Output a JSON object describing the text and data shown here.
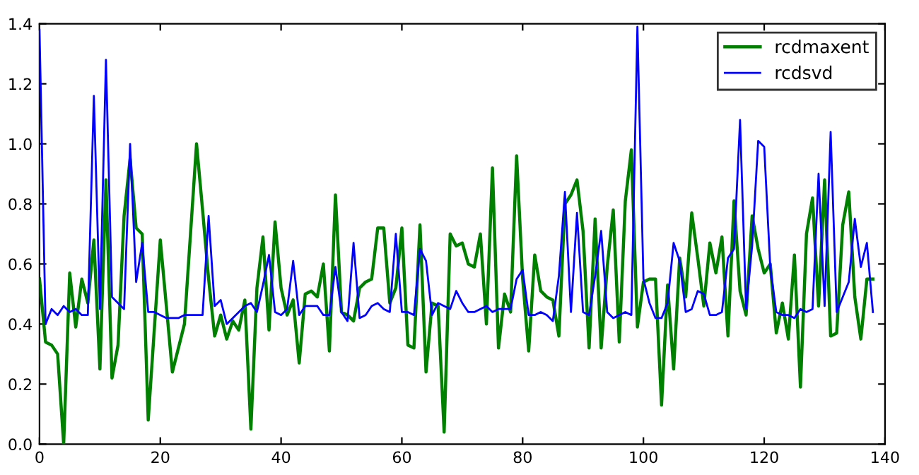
{
  "chart_data": {
    "type": "line",
    "x": [
      0,
      1,
      2,
      3,
      4,
      5,
      6,
      7,
      8,
      9,
      10,
      11,
      12,
      13,
      14,
      15,
      16,
      17,
      18,
      19,
      20,
      21,
      22,
      23,
      24,
      25,
      26,
      27,
      28,
      29,
      30,
      31,
      32,
      33,
      34,
      35,
      36,
      37,
      38,
      39,
      40,
      41,
      42,
      43,
      44,
      45,
      46,
      47,
      48,
      49,
      50,
      51,
      52,
      53,
      54,
      55,
      56,
      57,
      58,
      59,
      60,
      61,
      62,
      63,
      64,
      65,
      66,
      67,
      68,
      69,
      70,
      71,
      72,
      73,
      74,
      75,
      76,
      77,
      78,
      79,
      80,
      81,
      82,
      83,
      84,
      85,
      86,
      87,
      88,
      89,
      90,
      91,
      92,
      93,
      94,
      95,
      96,
      97,
      98,
      99,
      100,
      101,
      102,
      103,
      104,
      105,
      106,
      107,
      108,
      109,
      110,
      111,
      112,
      113,
      114,
      115,
      116,
      117,
      118,
      119,
      120,
      121,
      122,
      123,
      124,
      125,
      126,
      127,
      128,
      129,
      130,
      131,
      132,
      133,
      134,
      135,
      136,
      137,
      138
    ],
    "series": [
      {
        "name": "rcdmaxent",
        "color": "#008000",
        "values": [
          0.55,
          0.34,
          0.33,
          0.3,
          0.0,
          0.57,
          0.39,
          0.55,
          0.47,
          0.68,
          0.25,
          0.88,
          0.22,
          0.33,
          0.76,
          0.95,
          0.72,
          0.7,
          0.08,
          0.38,
          0.68,
          0.46,
          0.24,
          0.32,
          0.4,
          0.7,
          1.0,
          0.78,
          0.55,
          0.36,
          0.43,
          0.35,
          0.41,
          0.38,
          0.48,
          0.05,
          0.52,
          0.69,
          0.38,
          0.74,
          0.52,
          0.43,
          0.48,
          0.27,
          0.5,
          0.51,
          0.49,
          0.6,
          0.31,
          0.83,
          0.44,
          0.43,
          0.41,
          0.52,
          0.54,
          0.55,
          0.72,
          0.72,
          0.47,
          0.52,
          0.72,
          0.33,
          0.32,
          0.73,
          0.24,
          0.47,
          0.46,
          0.04,
          0.7,
          0.66,
          0.67,
          0.6,
          0.59,
          0.7,
          0.4,
          0.92,
          0.32,
          0.5,
          0.44,
          0.96,
          0.55,
          0.31,
          0.63,
          0.51,
          0.49,
          0.48,
          0.36,
          0.8,
          0.83,
          0.88,
          0.71,
          0.32,
          0.75,
          0.32,
          0.59,
          0.78,
          0.34,
          0.81,
          0.98,
          0.39,
          0.54,
          0.55,
          0.55,
          0.13,
          0.53,
          0.25,
          0.62,
          0.49,
          0.77,
          0.62,
          0.46,
          0.67,
          0.57,
          0.69,
          0.36,
          0.81,
          0.51,
          0.43,
          0.76,
          0.65,
          0.57,
          0.6,
          0.37,
          0.47,
          0.35,
          0.63,
          0.19,
          0.7,
          0.82,
          0.46,
          0.88,
          0.36,
          0.37,
          0.73,
          0.84,
          0.49,
          0.35,
          0.55,
          0.55
        ]
      },
      {
        "name": "rcdsvd",
        "color": "#0000ff",
        "values": [
          1.38,
          0.4,
          0.45,
          0.43,
          0.46,
          0.44,
          0.45,
          0.43,
          0.43,
          1.16,
          0.45,
          1.28,
          0.49,
          0.47,
          0.45,
          1.0,
          0.54,
          0.67,
          0.44,
          0.44,
          0.43,
          0.42,
          0.42,
          0.42,
          0.43,
          0.43,
          0.43,
          0.43,
          0.76,
          0.46,
          0.48,
          0.4,
          0.42,
          0.44,
          0.46,
          0.47,
          0.44,
          0.53,
          0.63,
          0.44,
          0.43,
          0.45,
          0.61,
          0.43,
          0.46,
          0.46,
          0.46,
          0.43,
          0.43,
          0.59,
          0.44,
          0.41,
          0.67,
          0.42,
          0.43,
          0.46,
          0.47,
          0.45,
          0.44,
          0.7,
          0.44,
          0.44,
          0.43,
          0.65,
          0.61,
          0.43,
          0.47,
          0.46,
          0.45,
          0.51,
          0.47,
          0.44,
          0.44,
          0.45,
          0.46,
          0.44,
          0.45,
          0.45,
          0.45,
          0.55,
          0.58,
          0.43,
          0.43,
          0.44,
          0.43,
          0.41,
          0.56,
          0.84,
          0.44,
          0.77,
          0.44,
          0.43,
          0.56,
          0.71,
          0.44,
          0.42,
          0.43,
          0.44,
          0.43,
          1.39,
          0.55,
          0.47,
          0.42,
          0.42,
          0.47,
          0.67,
          0.61,
          0.44,
          0.45,
          0.51,
          0.5,
          0.43,
          0.43,
          0.44,
          0.62,
          0.65,
          1.08,
          0.45,
          0.66,
          1.01,
          0.99,
          0.59,
          0.44,
          0.43,
          0.43,
          0.42,
          0.45,
          0.44,
          0.45,
          0.9,
          0.46,
          1.04,
          0.44,
          0.49,
          0.54,
          0.75,
          0.59,
          0.67,
          0.44
        ]
      }
    ],
    "xlim": [
      0,
      140
    ],
    "xticks": [
      0,
      20,
      40,
      60,
      80,
      100,
      120,
      140
    ],
    "ylim": [
      0,
      1.4
    ],
    "yticks": [
      {
        "value": 0,
        "label": "0.0"
      },
      {
        "value": 0.2,
        "label": "0.2"
      },
      {
        "value": 0.4,
        "label": "0.4"
      },
      {
        "value": 0.6,
        "label": "0.6"
      },
      {
        "value": 0.8,
        "label": "0.8"
      },
      {
        "value": 1.0,
        "label": "1.0"
      },
      {
        "value": 1.2,
        "label": "1.2"
      },
      {
        "value": 1.4,
        "label": "1.4"
      }
    ],
    "legend": "top right",
    "grid": false,
    "marker": "none",
    "line_style": "solid"
  }
}
